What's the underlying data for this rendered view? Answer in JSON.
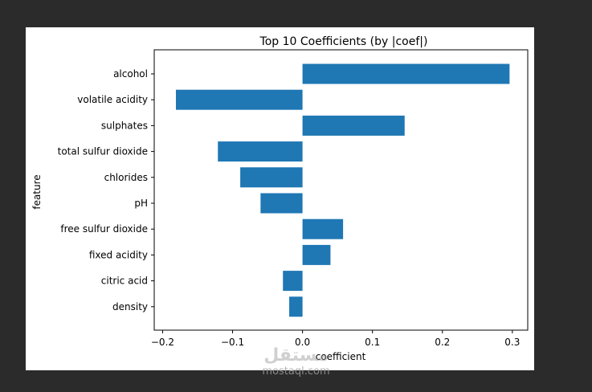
{
  "chart_data": {
    "type": "bar",
    "orientation": "horizontal",
    "title": "Top 10 Coefficients (by |coef|)",
    "xlabel": "coefficient",
    "ylabel": "feature",
    "categories": [
      "alcohol",
      "volatile acidity",
      "sulphates",
      "total sulfur dioxide",
      "chlorides",
      "pH",
      "free sulfur dioxide",
      "fixed acidity",
      "citric acid",
      "density"
    ],
    "values": [
      0.296,
      -0.181,
      0.146,
      -0.121,
      -0.089,
      -0.06,
      0.058,
      0.04,
      -0.028,
      -0.019
    ],
    "xlim": [
      -0.212,
      0.322
    ],
    "xticks": [
      -0.2,
      -0.1,
      0.0,
      0.1,
      0.2,
      0.3
    ],
    "xtick_labels": [
      "−0.2",
      "−0.1",
      "0.0",
      "0.1",
      "0.2",
      "0.3"
    ],
    "bar_color": "#1f77b4",
    "grid": false,
    "legend": "none"
  },
  "watermark": {
    "arabic": "مستقل",
    "latin": "mostaql.com"
  }
}
